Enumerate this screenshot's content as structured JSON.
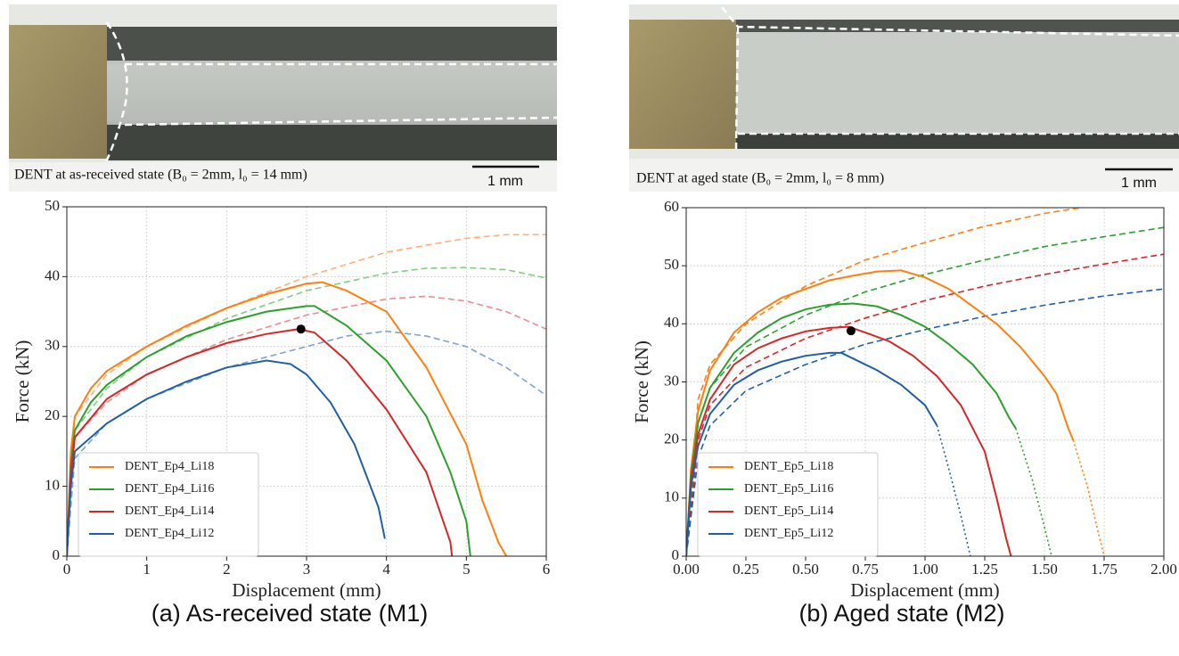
{
  "chart_data": [
    {
      "type": "line",
      "image_caption": "DENT at as-received state (B₀ = 2mm, l₀ = 14 mm)",
      "scale_bar_label": "1 mm",
      "caption": "(a) As-received state (M1)",
      "x_label": "Displacement (mm)",
      "y_label": "Force (kN)",
      "xlim": [
        0,
        6
      ],
      "ylim": [
        0,
        50
      ],
      "xticks": [
        0,
        1,
        2,
        3,
        4,
        5,
        6
      ],
      "yticks": [
        0,
        10,
        20,
        30,
        40,
        50
      ],
      "grid": true,
      "legend": "lower left",
      "series": [
        {
          "name": "DENT_Ep4_Li18",
          "color": "#ff7f0e",
          "linestyle": "solid",
          "x": [
            0,
            0.05,
            0.1,
            0.3,
            0.5,
            1,
            1.5,
            2,
            2.5,
            3,
            3.2,
            3.5,
            4,
            4.5,
            5,
            5.2,
            5.4,
            5.5
          ],
          "values": [
            0,
            15,
            20,
            24,
            26.5,
            30,
            33,
            35.5,
            37.5,
            39,
            39.2,
            38,
            35,
            27,
            16,
            8,
            2,
            0
          ]
        },
        {
          "name": "DENT_Ep4_Li16",
          "color": "#2ca02c",
          "linestyle": "solid",
          "x": [
            0,
            0.05,
            0.1,
            0.3,
            0.5,
            1,
            1.5,
            2,
            2.5,
            3,
            3.1,
            3.5,
            4,
            4.5,
            4.8,
            5,
            5.05
          ],
          "values": [
            0,
            13,
            18,
            22,
            24.5,
            28.5,
            31.5,
            33.5,
            35,
            35.8,
            35.8,
            33,
            28,
            20,
            12,
            5,
            0
          ]
        },
        {
          "name": "DENT_Ep4_Li14",
          "color": "#d62728",
          "linestyle": "solid",
          "x": [
            0,
            0.05,
            0.1,
            0.5,
            1,
            1.5,
            2,
            2.5,
            2.9,
            3.1,
            3.5,
            4,
            4.5,
            4.8,
            4.82
          ],
          "values": [
            0,
            12,
            17,
            22.5,
            26,
            28.5,
            30.5,
            31.8,
            32.5,
            32,
            28,
            21,
            12,
            2,
            0
          ]
        },
        {
          "name": "DENT_Ep4_Li12",
          "color": "#1f5fa8",
          "linestyle": "solid",
          "x": [
            0,
            0.05,
            0.1,
            0.5,
            1,
            1.5,
            2,
            2.5,
            2.8,
            3,
            3.3,
            3.6,
            3.9,
            3.98
          ],
          "values": [
            0,
            10,
            15,
            19,
            22.5,
            25,
            27,
            28,
            27.5,
            26,
            22,
            16,
            7,
            2.5
          ]
        },
        {
          "color": "#ffb07a",
          "linestyle": "dashed",
          "x": [
            0,
            0.1,
            0.5,
            1,
            2,
            3,
            4,
            5,
            5.5,
            6
          ],
          "values": [
            0,
            20,
            26,
            30,
            35.5,
            40,
            43.5,
            45.5,
            46,
            46
          ]
        },
        {
          "color": "#7fcf7f",
          "linestyle": "dashed",
          "x": [
            0,
            0.1,
            0.5,
            1,
            2,
            3,
            4,
            4.5,
            5,
            5.5,
            6
          ],
          "values": [
            0,
            18,
            24,
            28.5,
            34,
            38,
            40.5,
            41.2,
            41.3,
            41,
            39.8
          ]
        },
        {
          "color": "#ee8a8a",
          "linestyle": "dashed",
          "x": [
            0,
            0.1,
            0.5,
            1,
            2,
            3,
            4,
            4.5,
            5,
            5.5,
            6
          ],
          "values": [
            0,
            17,
            22,
            26,
            31,
            34.5,
            36.8,
            37.2,
            36.5,
            35,
            32.5
          ]
        },
        {
          "color": "#7fa3cf",
          "linestyle": "dashed",
          "x": [
            0,
            0.1,
            0.5,
            1,
            2,
            3,
            3.5,
            4,
            4.5,
            5,
            5.5,
            6
          ],
          "values": [
            0,
            14,
            19,
            22.5,
            27,
            30,
            31.5,
            32.2,
            31.5,
            30,
            27,
            23
          ]
        },
        {
          "color": "#000000",
          "linestyle": "none",
          "marker": "o",
          "x": [
            2.93
          ],
          "values": [
            32.5
          ]
        }
      ]
    },
    {
      "type": "line",
      "image_caption": "DENT at aged state (B₀ = 2mm, l₀ = 8 mm)",
      "scale_bar_label": "1 mm",
      "caption": "(b) Aged state (M2)",
      "x_label": "Displacement (mm)",
      "y_label": "Force (kN)",
      "xlim": [
        0,
        2
      ],
      "ylim": [
        0,
        60
      ],
      "xticks": [
        {
          "value": 0,
          "label": "0.00"
        },
        {
          "value": 0.25,
          "label": "0.25"
        },
        {
          "value": 0.5,
          "label": "0.50"
        },
        {
          "value": 0.75,
          "label": "0.75"
        },
        {
          "value": 1,
          "label": "1.00"
        },
        {
          "value": 1.25,
          "label": "1.25"
        },
        {
          "value": 1.5,
          "label": "1.50"
        },
        {
          "value": 1.75,
          "label": "1.75"
        },
        {
          "value": 2,
          "label": "2.00"
        }
      ],
      "yticks": [
        0,
        10,
        20,
        30,
        40,
        50,
        60
      ],
      "grid": true,
      "legend": "lower left",
      "series": [
        {
          "name": "DENT_Ep5_Li18",
          "color": "#ff7f0e",
          "linestyle": "solid",
          "x": [
            0,
            0.02,
            0.05,
            0.1,
            0.2,
            0.3,
            0.4,
            0.5,
            0.6,
            0.7,
            0.8,
            0.9,
            1,
            1.1,
            1.2,
            1.3,
            1.4,
            1.5,
            1.55,
            1.6,
            1.62
          ],
          "values": [
            0,
            15,
            25,
            32,
            38.5,
            42,
            44.5,
            46,
            47.5,
            48.3,
            49,
            49.2,
            48,
            46,
            43,
            40,
            36,
            31,
            28,
            22,
            20
          ]
        },
        {
          "name": "DENT_Ep5_Li16",
          "color": "#2ca02c",
          "linestyle": "solid",
          "x": [
            0,
            0.02,
            0.05,
            0.1,
            0.2,
            0.3,
            0.4,
            0.5,
            0.6,
            0.7,
            0.8,
            0.9,
            1,
            1.1,
            1.2,
            1.3,
            1.35,
            1.38
          ],
          "values": [
            0,
            14,
            23,
            29,
            35,
            38.5,
            41,
            42.5,
            43.3,
            43.5,
            43,
            41.5,
            39.5,
            36.5,
            33,
            28,
            24,
            22
          ]
        },
        {
          "name": "DENT_Ep5_Li14",
          "color": "#d62728",
          "linestyle": "solid",
          "x": [
            0,
            0.02,
            0.05,
            0.1,
            0.2,
            0.3,
            0.4,
            0.5,
            0.6,
            0.68,
            0.75,
            0.85,
            0.95,
            1.05,
            1.15,
            1.25,
            1.3,
            1.34,
            1.36
          ],
          "values": [
            0,
            13,
            21,
            27,
            33,
            35.8,
            37.5,
            38.7,
            39.3,
            39.5,
            38.5,
            37,
            34.5,
            31,
            26,
            18,
            10,
            3,
            0
          ]
        },
        {
          "name": "DENT_Ep5_Li12",
          "color": "#1f5fa8",
          "linestyle": "solid",
          "x": [
            0,
            0.02,
            0.05,
            0.1,
            0.2,
            0.3,
            0.4,
            0.5,
            0.6,
            0.65,
            0.7,
            0.8,
            0.9,
            1,
            1.05
          ],
          "values": [
            0,
            12,
            19,
            24.5,
            29.5,
            32,
            33.5,
            34.5,
            35,
            35,
            34,
            32,
            29.5,
            26,
            22.5
          ]
        },
        {
          "color": "#ff7f0e",
          "linestyle": "dotted",
          "x": [
            1.62,
            1.68,
            1.72,
            1.75
          ],
          "values": [
            20,
            12,
            5,
            0
          ]
        },
        {
          "color": "#2ca02c",
          "linestyle": "dotted",
          "x": [
            1.38,
            1.45,
            1.5,
            1.53
          ],
          "values": [
            22,
            13,
            5,
            0
          ]
        },
        {
          "color": "#1f5fa8",
          "linestyle": "dotted",
          "x": [
            1.05,
            1.1,
            1.15,
            1.19
          ],
          "values": [
            22.5,
            15,
            7,
            0
          ]
        },
        {
          "color": "#ff7f0e",
          "linestyle": "dashed",
          "x": [
            0,
            0.05,
            0.1,
            0.25,
            0.5,
            0.75,
            1,
            1.25,
            1.5,
            1.65
          ],
          "values": [
            0,
            27,
            33,
            40,
            46.5,
            51,
            54,
            56.8,
            59,
            60
          ]
        },
        {
          "color": "#2ca02c",
          "linestyle": "dashed",
          "x": [
            0,
            0.05,
            0.1,
            0.25,
            0.5,
            0.75,
            1,
            1.25,
            1.5,
            1.75,
            2
          ],
          "values": [
            0,
            23,
            29,
            36,
            41.5,
            45.5,
            48.5,
            51,
            53.3,
            55,
            56.6
          ]
        },
        {
          "color": "#d62728",
          "linestyle": "dashed",
          "x": [
            0,
            0.05,
            0.1,
            0.25,
            0.5,
            0.75,
            1,
            1.25,
            1.5,
            1.75,
            2
          ],
          "values": [
            0,
            20,
            26,
            32.5,
            37.5,
            41,
            44,
            46.5,
            48.5,
            50.3,
            52
          ]
        },
        {
          "color": "#1f5fa8",
          "linestyle": "dashed",
          "x": [
            0,
            0.05,
            0.1,
            0.25,
            0.5,
            0.75,
            1,
            1.25,
            1.5,
            1.75,
            2
          ],
          "values": [
            0,
            17,
            22.5,
            28.5,
            33,
            36.5,
            39,
            41.3,
            43.2,
            44.8,
            46
          ]
        },
        {
          "color": "#000000",
          "linestyle": "none",
          "marker": "o",
          "x": [
            0.69
          ],
          "values": [
            38.8
          ]
        }
      ]
    }
  ]
}
